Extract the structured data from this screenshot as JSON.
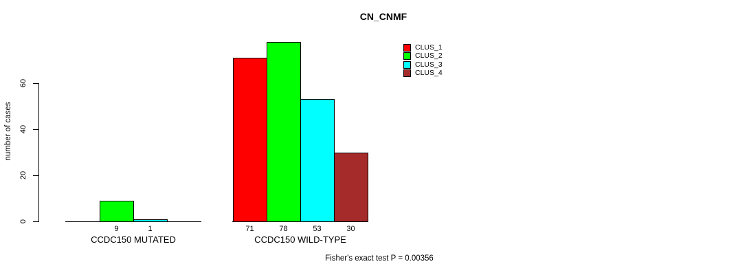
{
  "chart_data": {
    "type": "bar",
    "title": "CN_CNMF",
    "ylabel": "number of cases",
    "xlabel": "",
    "yticks": [
      0,
      20,
      40,
      60
    ],
    "ylim": [
      0,
      80
    ],
    "grid": false,
    "categories": [
      "CCDC150 MUTATED",
      "CCDC150 WILD-TYPE"
    ],
    "series": [
      {
        "name": "CLUS_1",
        "color": "#ff0000",
        "values": [
          0,
          71
        ]
      },
      {
        "name": "CLUS_2",
        "color": "#00ff00",
        "values": [
          9,
          78
        ]
      },
      {
        "name": "CLUS_3",
        "color": "#00ffff",
        "values": [
          1,
          53
        ]
      },
      {
        "name": "CLUS_4",
        "color": "#a52a2a",
        "values": [
          0,
          30
        ]
      }
    ],
    "legend_position": "top-right",
    "value_labels_note": "bar values printed under each non-zero bar",
    "annotation": "Fisher's exact test P = 0.00356"
  }
}
